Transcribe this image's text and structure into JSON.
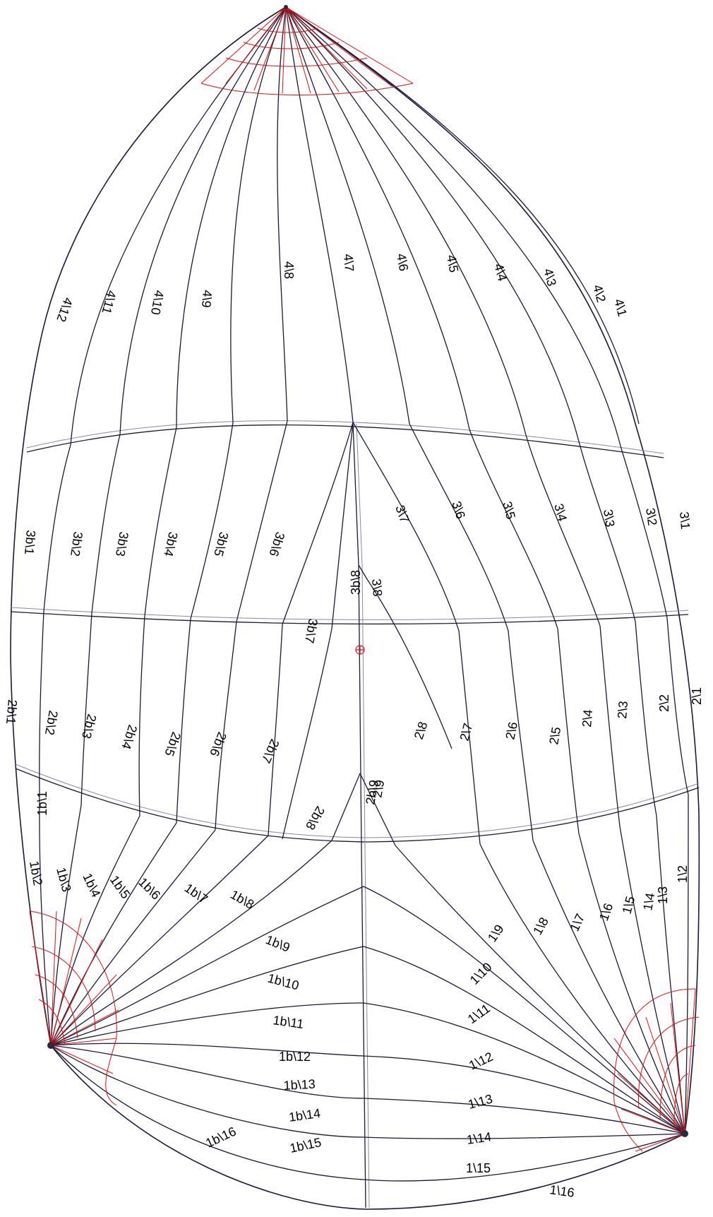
{
  "colors": {
    "outline": "#1a1a3a",
    "reinforcement": "#e01010",
    "label": "#000000"
  },
  "labels": {
    "p4": [
      "4\\1",
      "4\\2",
      "4\\3",
      "4\\4",
      "4\\5",
      "4\\6",
      "4\\7",
      "4\\8",
      "4\\9",
      "4\\10",
      "4\\11",
      "4\\12"
    ],
    "p3": [
      "3\\1",
      "3\\2",
      "3\\3",
      "3\\4",
      "3\\5",
      "3\\6",
      "3\\7",
      "3\\8"
    ],
    "p3b": [
      "3b\\1",
      "3b\\2",
      "3b\\3",
      "3b\\4",
      "3b\\5",
      "3b\\6",
      "3b\\7",
      "3b\\8"
    ],
    "p2": [
      "2\\1",
      "2\\2",
      "2\\3",
      "2\\4",
      "2\\5",
      "2\\6",
      "2\\7",
      "2\\8",
      "2\\9"
    ],
    "p2b": [
      "2b\\1",
      "2b\\2",
      "2b\\3",
      "2b\\4",
      "2b\\5",
      "2b\\6",
      "2b\\7",
      "2b\\8",
      "2b\\9"
    ],
    "p1": [
      "1\\2",
      "1\\3",
      "1\\4",
      "1\\5",
      "1\\6",
      "1\\7",
      "1\\8",
      "1\\9",
      "1\\10",
      "1\\11",
      "1\\12",
      "1\\13",
      "1\\14",
      "1\\15",
      "1\\16"
    ],
    "p1b": [
      "1b\\1",
      "1b\\2",
      "1b\\3",
      "1b\\4",
      "1b\\5",
      "1b\\6",
      "1b\\7",
      "1b\\8",
      "1b\\9",
      "1b\\10",
      "1b\\11",
      "1b\\12",
      "1b\\13",
      "1b\\14",
      "1b\\15",
      "1b\\16"
    ]
  }
}
